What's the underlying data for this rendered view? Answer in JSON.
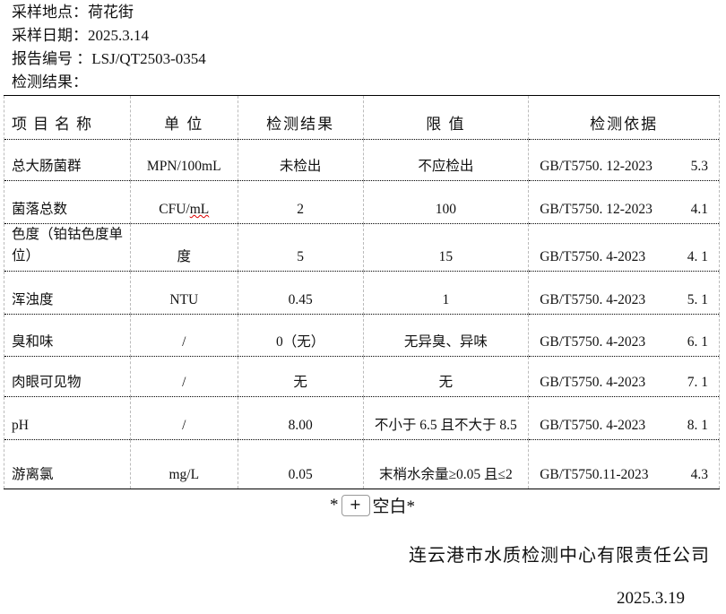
{
  "header": {
    "location_label": "采样地点：",
    "location": "荷花街",
    "date_label": "采样日期：",
    "date": "2025.3.14",
    "report_label": "报告编号 ：",
    "report_no": "LSJ/QT2503-0354",
    "result_label": "检测结果："
  },
  "table": {
    "columns": [
      "项目名称",
      "单 位",
      "检测结果",
      "限 值",
      "检测依据"
    ],
    "rows": [
      {
        "name": "总大肠菌群",
        "unit": "MPN/100mL",
        "result": "未检出",
        "limit": "不应检出",
        "std": "GB/T5750. 12-2023",
        "clause": "5.3"
      },
      {
        "name": "菌落总数",
        "unit": "CFU/mL",
        "result": "2",
        "limit": "100",
        "std": "GB/T5750. 12-2023",
        "clause": "4.1"
      },
      {
        "name": "色度（铂钴色度单位）",
        "unit": "度",
        "result": "5",
        "limit": "15",
        "std": "GB/T5750. 4-2023",
        "clause": "4. 1"
      },
      {
        "name": "浑浊度",
        "unit": "NTU",
        "result": "0.45",
        "limit": "1",
        "std": "GB/T5750. 4-2023",
        "clause": "5. 1"
      },
      {
        "name": "臭和味",
        "unit": "/",
        "result": "0（无）",
        "limit": "无异臭、异味",
        "std": "GB/T5750. 4-2023",
        "clause": "6. 1"
      },
      {
        "name": "肉眼可见物",
        "unit": "/",
        "result": "无",
        "limit": "无",
        "std": "GB/T5750. 4-2023",
        "clause": "7. 1"
      },
      {
        "name": "pH",
        "unit": "/",
        "result": "8.00",
        "limit": "不小于 6.5 且不大于 8.5",
        "std": "GB/T5750. 4-2023",
        "clause": "8. 1"
      },
      {
        "name": "游离氯",
        "unit": "mg/L",
        "result": "0.05",
        "limit": "末梢水余量≥0.05 且≤2",
        "std": "GB/T5750.11-2023",
        "clause": "4.3"
      }
    ]
  },
  "blank_note": {
    "prefix": "*",
    "plus": "+",
    "text": "空白*"
  },
  "footer": {
    "company": "连云港市水质检测中心有限责任公司",
    "date": "2025.3.19"
  }
}
